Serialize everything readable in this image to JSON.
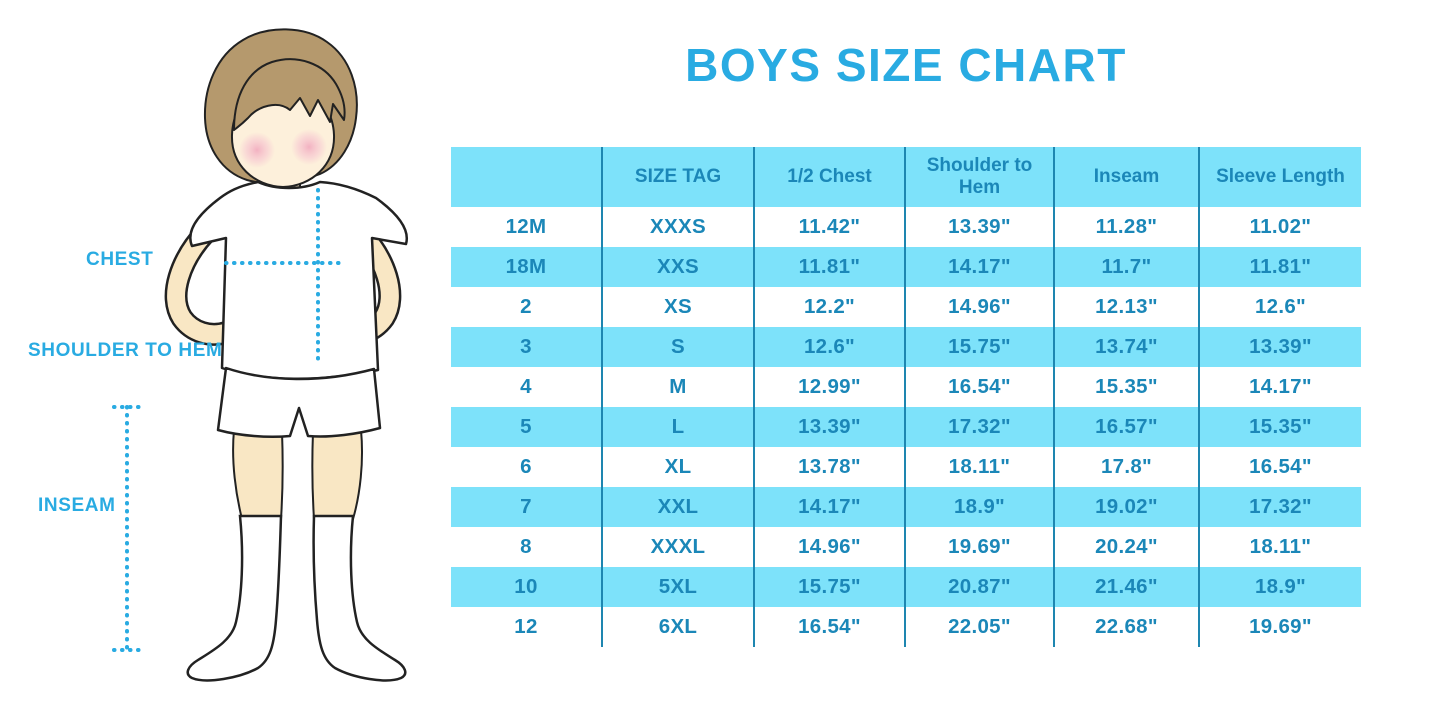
{
  "title": "BOYS SIZE CHART",
  "figure": {
    "labels": {
      "chest": "CHEST",
      "shoulder_to_hem": "SHOULDER TO HEM",
      "inseam": "INSEAM"
    }
  },
  "chart_data": {
    "type": "table",
    "title": "BOYS SIZE CHART",
    "columns": [
      "",
      "SIZE TAG",
      "1/2 Chest",
      "Shoulder to Hem",
      "Inseam",
      "Sleeve Length"
    ],
    "rows": [
      [
        "12M",
        "XXXS",
        "11.42\"",
        "13.39\"",
        "11.28\"",
        "11.02\""
      ],
      [
        "18M",
        "XXS",
        "11.81\"",
        "14.17\"",
        "11.7\"",
        "11.81\""
      ],
      [
        "2",
        "XS",
        "12.2\"",
        "14.96\"",
        "12.13\"",
        "12.6\""
      ],
      [
        "3",
        "S",
        "12.6\"",
        "15.75\"",
        "13.74\"",
        "13.39\""
      ],
      [
        "4",
        "M",
        "12.99\"",
        "16.54\"",
        "15.35\"",
        "14.17\""
      ],
      [
        "5",
        "L",
        "13.39\"",
        "17.32\"",
        "16.57\"",
        "15.35\""
      ],
      [
        "6",
        "XL",
        "13.78\"",
        "18.11\"",
        "17.8\"",
        "16.54\""
      ],
      [
        "7",
        "XXL",
        "14.17\"",
        "18.9\"",
        "19.02\"",
        "17.32\""
      ],
      [
        "8",
        "XXXL",
        "14.96\"",
        "19.69\"",
        "20.24\"",
        "18.11\""
      ],
      [
        "10",
        "5XL",
        "15.75\"",
        "20.87\"",
        "21.46\"",
        "18.9\""
      ],
      [
        "12",
        "6XL",
        "16.54\"",
        "22.05\"",
        "22.68\"",
        "19.69\""
      ]
    ],
    "striped": true,
    "legend_position": "none",
    "grid": "vertical-only"
  },
  "colors": {
    "title_blue": "#29ABE2",
    "accent_blue": "#29ABE2",
    "table_text": "#1B87B8",
    "table_border": "#1E86B0",
    "row_highlight": "#7DE2FA",
    "row_alternate": "#FFFFFF",
    "hair": "#B5996D",
    "skin": "#F9E7C4",
    "cheek_pink": "#F2AEC0",
    "background": "#FFFFFF"
  }
}
